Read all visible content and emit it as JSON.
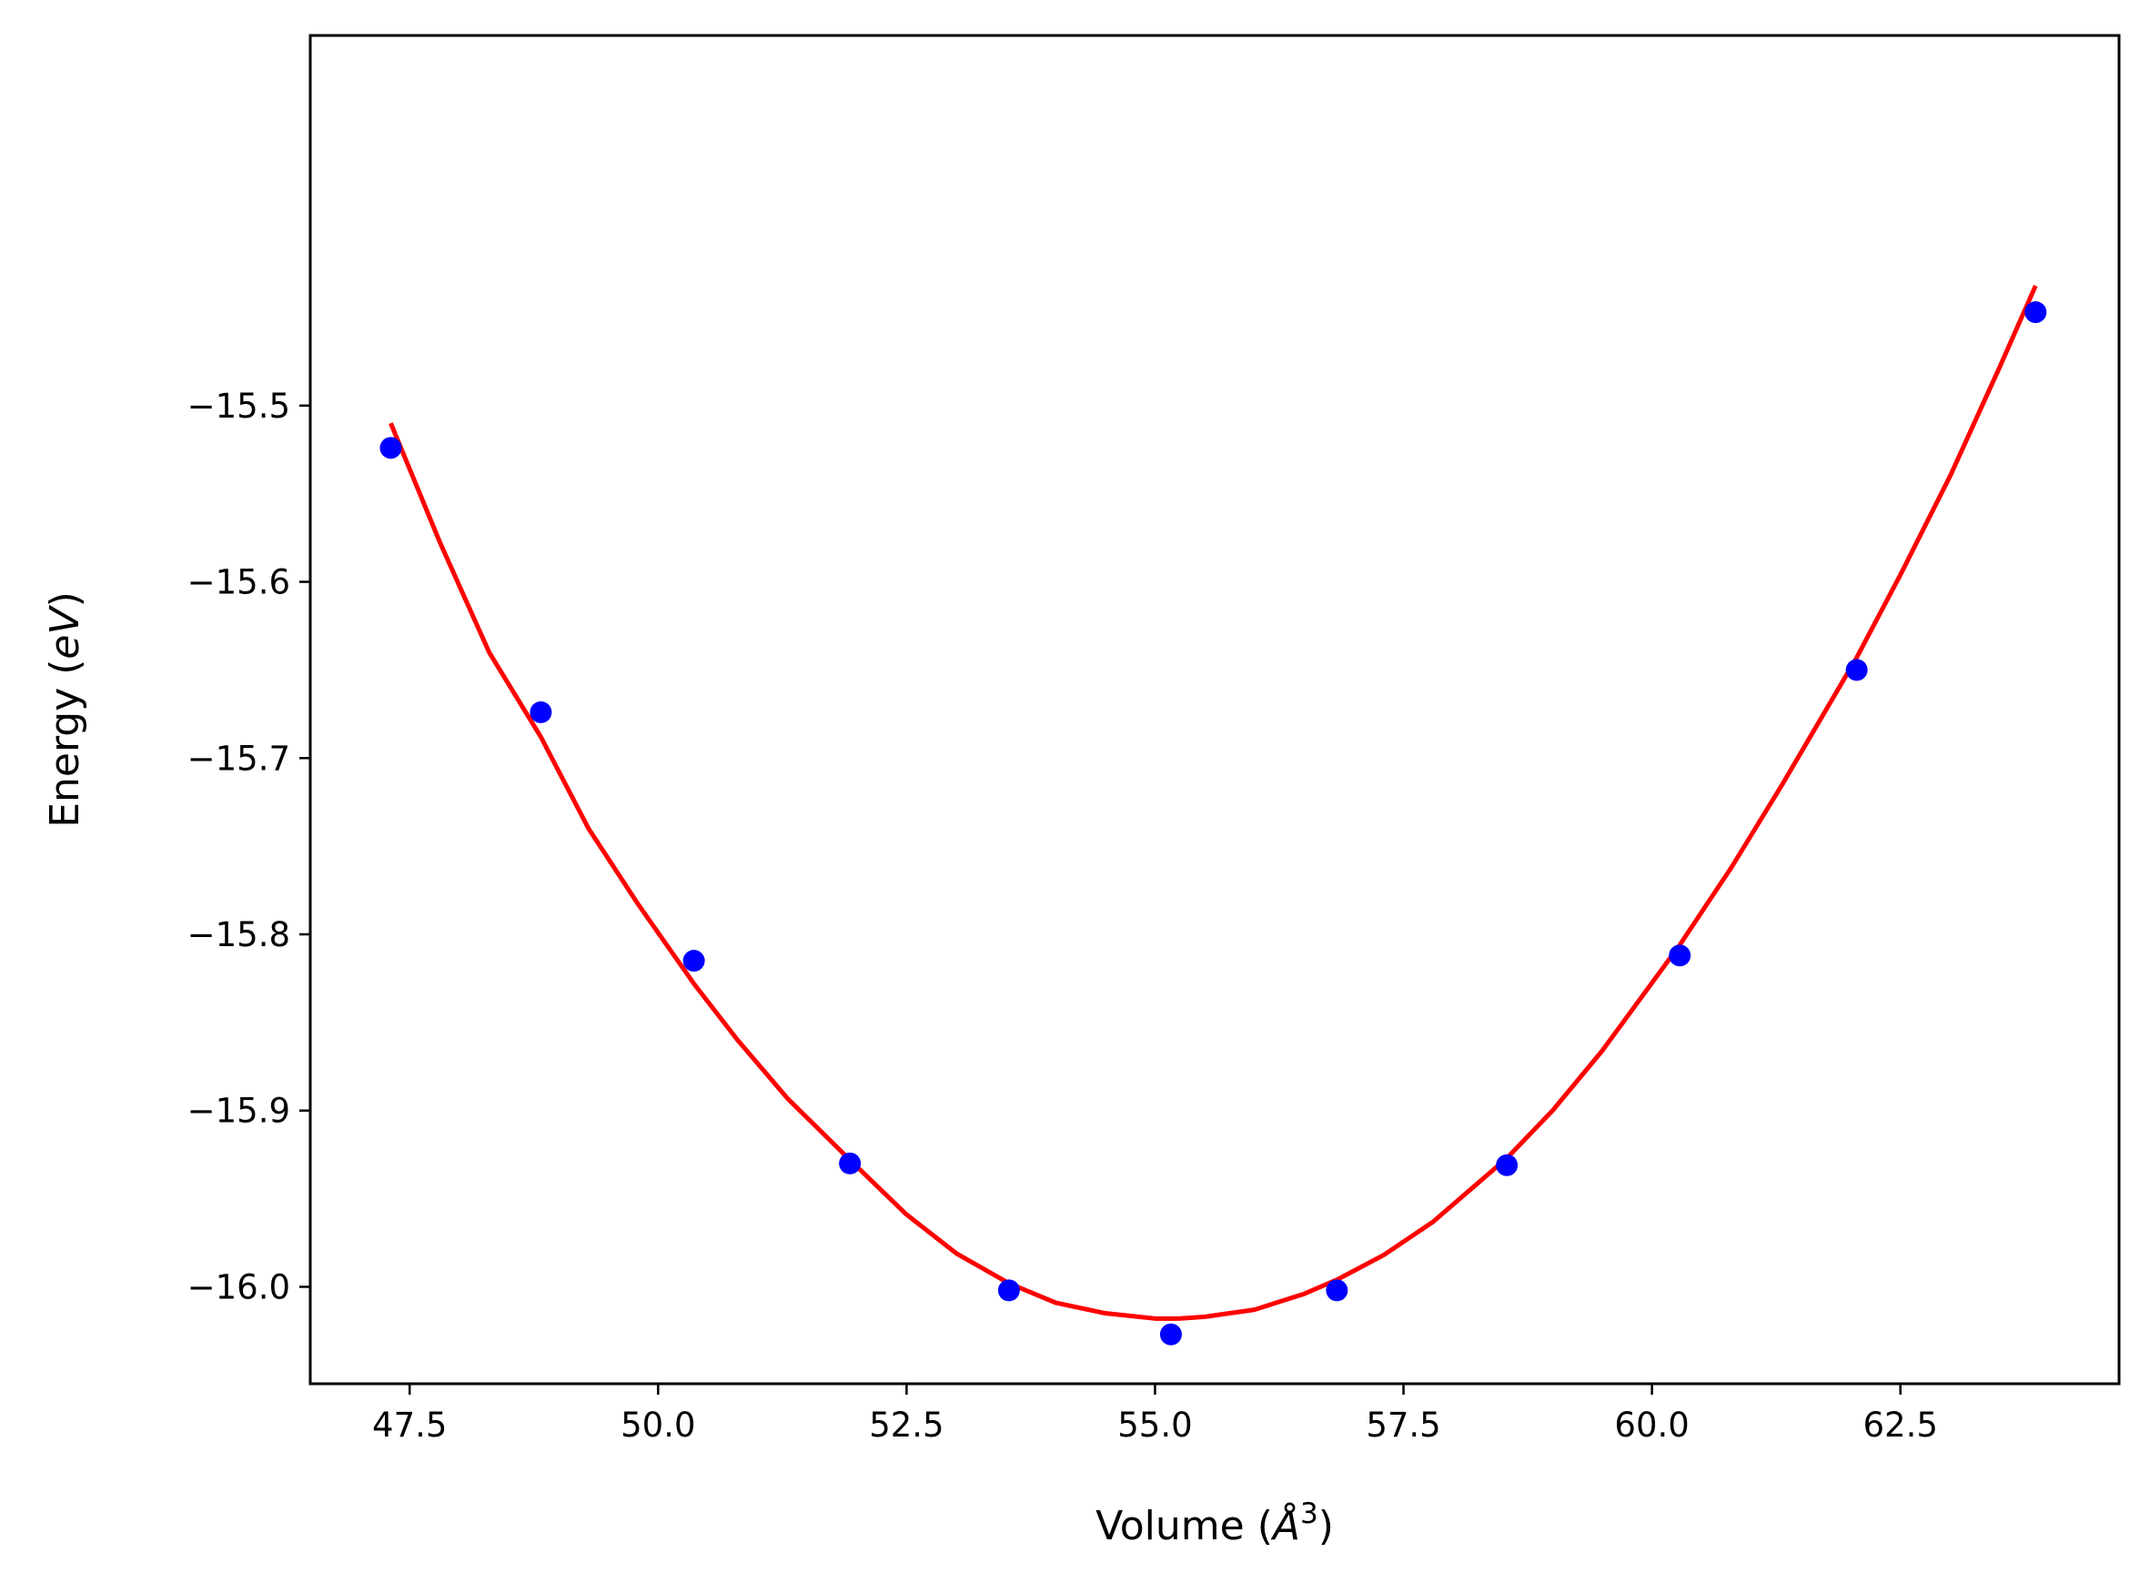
{
  "chart_data": {
    "type": "scatter",
    "xlabel": "Volume",
    "xlabel_unit": "Å",
    "xlabel_unit_exponent": "3",
    "ylabel": "Energy",
    "ylabel_unit": "eV",
    "xlim": [
      46.5,
      64.7
    ],
    "ylim": [
      -16.055,
      -15.29
    ],
    "x_ticks": [
      47.5,
      50.0,
      52.5,
      55.0,
      57.5,
      60.0,
      62.5
    ],
    "x_tick_labels": [
      "47.5",
      "50.0",
      "52.5",
      "55.0",
      "57.5",
      "60.0",
      "62.5"
    ],
    "y_ticks": [
      -15.5,
      -15.6,
      -15.7,
      -15.8,
      -15.9,
      -16.0
    ],
    "y_tick_labels": [
      "−15.5",
      "−15.6",
      "−15.7",
      "−15.8",
      "−15.9",
      "−16.0"
    ],
    "grid": false,
    "series": [
      {
        "kind": "points",
        "color": "#0000ff",
        "x": [
          47.31,
          48.82,
          50.36,
          51.93,
          53.53,
          55.16,
          56.83,
          58.54,
          60.28,
          62.06,
          63.86
        ],
        "y": [
          -15.524,
          -15.674,
          -15.815,
          -15.93,
          -16.002,
          -16.027,
          -16.002,
          -15.931,
          -15.812,
          -15.65,
          -15.447
        ]
      },
      {
        "kind": "fit",
        "color": "#ff0000",
        "x": [
          47.31,
          47.8,
          48.3,
          48.82,
          49.3,
          49.8,
          50.36,
          50.8,
          51.3,
          51.93,
          52.5,
          53.0,
          53.53,
          54.0,
          54.5,
          55.0,
          55.24,
          55.5,
          56.0,
          56.5,
          56.83,
          57.3,
          57.8,
          58.54,
          59.0,
          59.5,
          60.28,
          60.8,
          61.3,
          62.06,
          62.5,
          63.0,
          63.5,
          63.86
        ],
        "y": [
          -15.51,
          -15.577,
          -15.64,
          -15.688,
          -15.74,
          -15.783,
          -15.828,
          -15.86,
          -15.893,
          -15.928,
          -15.959,
          -15.981,
          -15.998,
          -16.009,
          -16.015,
          -16.018,
          -16.018,
          -16.017,
          -16.013,
          -16.004,
          -15.996,
          -15.982,
          -15.963,
          -15.927,
          -15.9,
          -15.866,
          -15.806,
          -15.762,
          -15.716,
          -15.643,
          -15.596,
          -15.54,
          -15.478,
          -15.432
        ]
      }
    ]
  }
}
